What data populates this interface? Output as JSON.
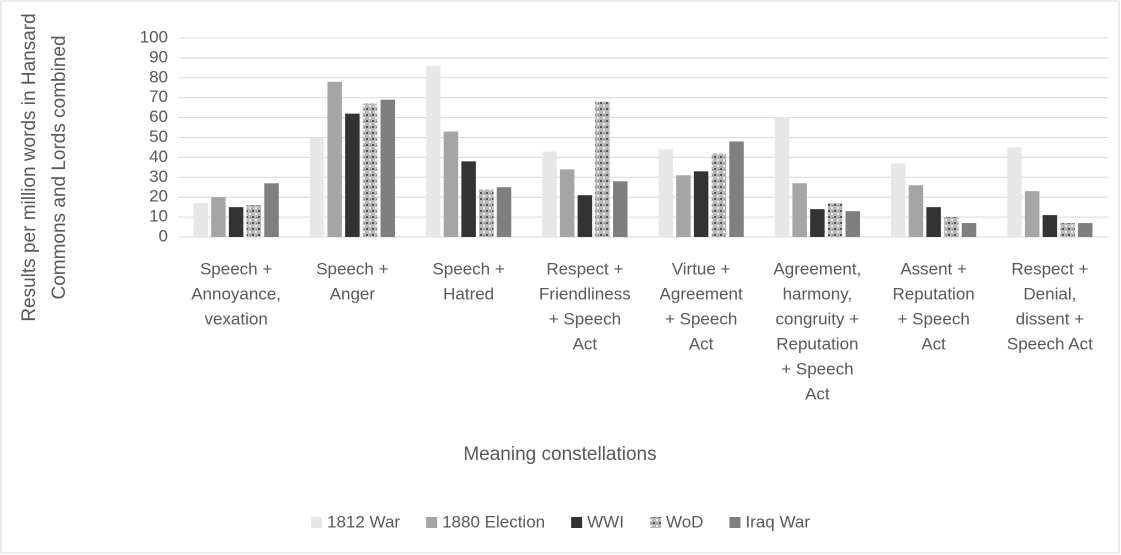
{
  "chart_data": {
    "type": "bar",
    "x_label": "Meaning constellations",
    "y_label": [
      "Results per million words in Hansard",
      "Commons and Lords combined"
    ],
    "categories": [
      [
        "Speech +",
        "Annoyance,",
        "vexation"
      ],
      [
        "Speech +",
        "Anger"
      ],
      [
        "Speech +",
        "Hatred"
      ],
      [
        "Respect +",
        "Friendliness",
        "+ Speech",
        "Act"
      ],
      [
        "Virtue +",
        "Agreement",
        "+ Speech",
        "Act"
      ],
      [
        "Agreement,",
        "harmony,",
        "congruity +",
        "Reputation",
        "+ Speech",
        "Act"
      ],
      [
        "Assent +",
        "Reputation",
        "+ Speech",
        "Act"
      ],
      [
        "Respect +",
        "Denial,",
        "dissent +",
        "Speech Act"
      ]
    ],
    "series": [
      {
        "name": "1812 War",
        "color": "#e7e7e7",
        "values": [
          17,
          50,
          86,
          43,
          44,
          60,
          37,
          45
        ]
      },
      {
        "name": "1880 Election",
        "color": "#a5a5a5",
        "values": [
          20,
          78,
          53,
          34,
          31,
          27,
          26,
          23
        ]
      },
      {
        "name": "WWI",
        "color": "#333333",
        "values": [
          15,
          62,
          38,
          21,
          33,
          14,
          15,
          11
        ]
      },
      {
        "name": "WoD",
        "color": "#b8b8b8",
        "values": [
          16,
          67,
          24,
          68,
          42,
          17,
          10,
          7
        ]
      },
      {
        "name": "Iraq War",
        "color": "#7f7f7f",
        "values": [
          27,
          69,
          25,
          28,
          48,
          13,
          7,
          7
        ]
      }
    ],
    "ylim": [
      0,
      100
    ],
    "yticks": [
      0,
      10,
      20,
      30,
      40,
      50,
      60,
      70,
      80,
      90,
      100
    ],
    "grid": true,
    "legend": "bottom"
  }
}
